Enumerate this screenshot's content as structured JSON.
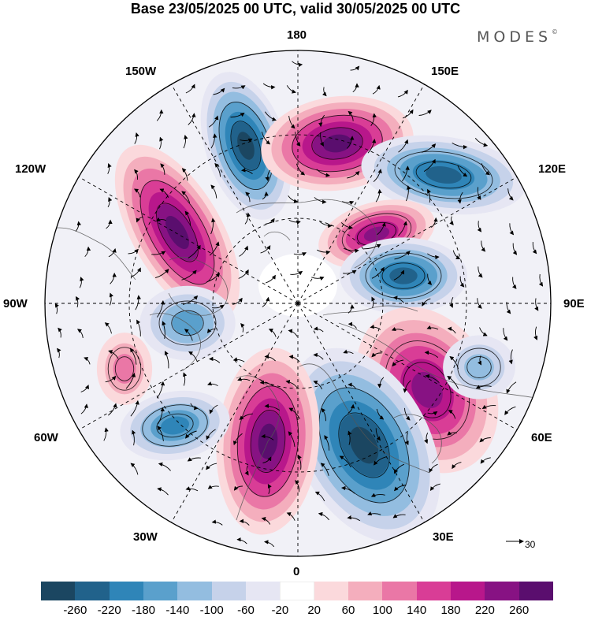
{
  "title": "Base 23/05/2025 00 UTC, valid 30/05/2025 00 UTC",
  "brand": "MODES",
  "brand_mark": "©",
  "longitude_labels": {
    "n180": "180",
    "w150": "150W",
    "e150": "150E",
    "w120": "120W",
    "e120": "120E",
    "w90": "90W",
    "e90": "90E",
    "w60": "60W",
    "e60": "60E",
    "w30": "30W",
    "e30": "30E",
    "s0": "0"
  },
  "vector_reference": {
    "value": "30"
  },
  "colorbar": {
    "colors": [
      "#1b4661",
      "#21628b",
      "#2f85b8",
      "#5aa0cc",
      "#93bde0",
      "#c6d2ea",
      "#e6e6f3",
      "#ffffff",
      "#fbd9dc",
      "#f4aebd",
      "#ea77a6",
      "#d93d96",
      "#b8178b",
      "#871283",
      "#5a0e6e"
    ],
    "ticks": [
      "-260",
      "-220",
      "-180",
      "-140",
      "-100",
      "-60",
      "-20",
      "20",
      "60",
      "100",
      "140",
      "180",
      "220",
      "260"
    ]
  },
  "anomaly_centers": [
    {
      "sign": "negative",
      "strength": 260,
      "bearing": "near 170W"
    },
    {
      "sign": "positive",
      "strength": 260,
      "bearing": "near 160E"
    },
    {
      "sign": "negative",
      "strength": 200,
      "bearing": "near 120E"
    },
    {
      "sign": "positive",
      "strength": 240,
      "bearing": "near 115W"
    },
    {
      "sign": "positive",
      "strength": 180,
      "bearing": "near 120E-150E inner"
    },
    {
      "sign": "negative",
      "strength": 180,
      "bearing": "near 90E inner"
    },
    {
      "sign": "negative",
      "strength": 120,
      "bearing": "near 90W"
    },
    {
      "sign": "positive",
      "strength": 180,
      "bearing": "near 55E"
    },
    {
      "sign": "negative",
      "strength": 60,
      "bearing": "near 75E"
    },
    {
      "sign": "negative",
      "strength": 260,
      "bearing": "near 20E"
    },
    {
      "sign": "positive",
      "strength": 240,
      "bearing": "near 10W"
    },
    {
      "sign": "negative",
      "strength": 140,
      "bearing": "near 50W"
    },
    {
      "sign": "positive",
      "strength": 60,
      "bearing": "near 75W"
    }
  ]
}
